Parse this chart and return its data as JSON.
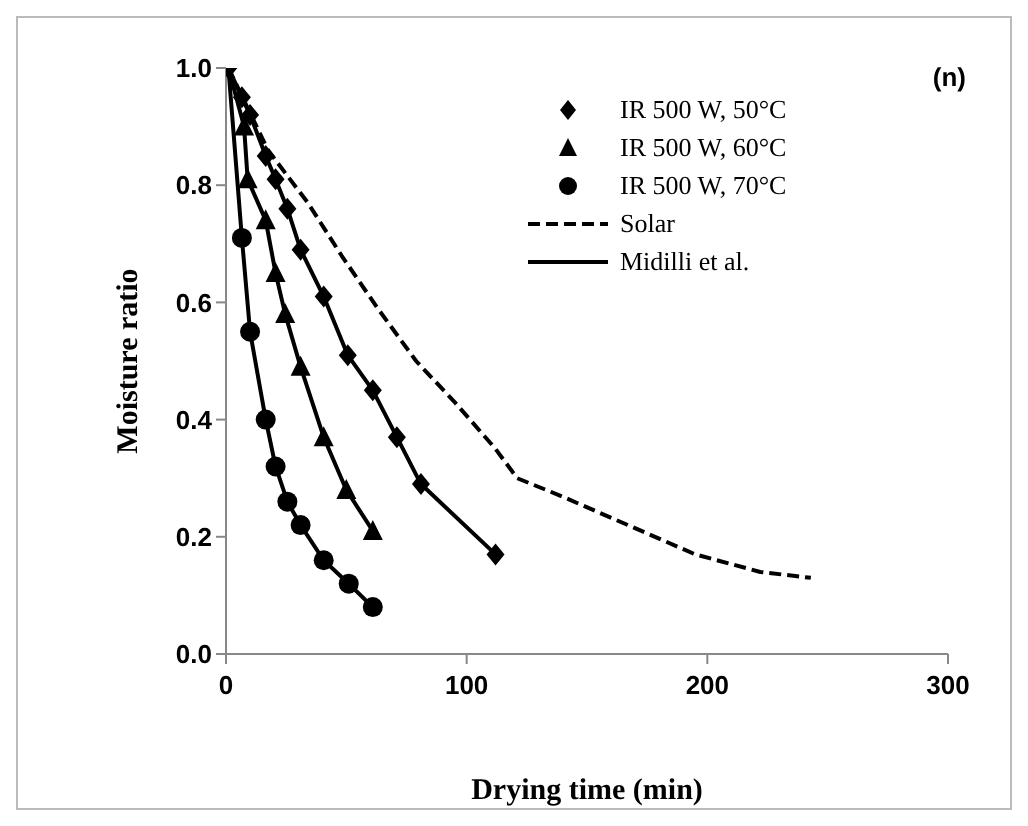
{
  "chart_data": {
    "type": "scatter",
    "xlabel": "Drying time (min)",
    "ylabel": "Moisture ratio",
    "annotations": [
      "(n)"
    ],
    "xlim": [
      0,
      300
    ],
    "xticks": [
      0,
      100,
      200,
      300
    ],
    "ylim": [
      0,
      1
    ],
    "yticks": [
      {
        "value": 0,
        "label": "0.0"
      },
      {
        "value": 0.2,
        "label": "0.2"
      },
      {
        "value": 0.4,
        "label": "0.4"
      },
      {
        "value": 0.6,
        "label": "0.6"
      },
      {
        "value": 0.8,
        "label": "0.8"
      },
      {
        "value": 1,
        "label": "1.0"
      }
    ],
    "grid": false,
    "legend": "top right",
    "series": [
      {
        "name": "IR 500 W, 50°C",
        "type": "scatter",
        "marker": "diamond",
        "color": "#000000",
        "x": [
          1,
          6.6,
          10,
          16.5,
          20.6,
          25.5,
          31,
          40.6,
          50.6,
          61,
          71,
          81,
          112
        ],
        "values": [
          1,
          0.95,
          0.92,
          0.85,
          0.81,
          0.76,
          0.69,
          0.61,
          0.51,
          0.45,
          0.37,
          0.29,
          0.17
        ]
      },
      {
        "name": "IR 500 W, 60°C",
        "type": "scatter",
        "marker": "triangle",
        "color": "#000000",
        "x": [
          7.5,
          9,
          16.5,
          20.6,
          24.6,
          31,
          40.6,
          50,
          61
        ],
        "values": [
          0.9,
          0.81,
          0.74,
          0.65,
          0.58,
          0.49,
          0.37,
          0.28,
          0.21
        ]
      },
      {
        "name": "IR 500 W, 70°C",
        "type": "scatter",
        "marker": "circle",
        "color": "#000000",
        "x": [
          6.6,
          10,
          16.5,
          20.6,
          25.5,
          31,
          40.6,
          51,
          61
        ],
        "values": [
          0.71,
          0.55,
          0.4,
          0.32,
          0.26,
          0.22,
          0.16,
          0.12,
          0.08
        ]
      },
      {
        "name": "Solar",
        "type": "line",
        "line_style": "dashed",
        "color": "#000000",
        "x": [
          1,
          17.4,
          34,
          48,
          63,
          79,
          95,
          112,
          121,
          139,
          167,
          195,
          222,
          243
        ],
        "values": [
          1,
          0.86,
          0.77,
          0.68,
          0.59,
          0.5,
          0.43,
          0.35,
          0.3,
          0.27,
          0.22,
          0.17,
          0.14,
          0.13
        ]
      },
      {
        "name": "Midilli et al.",
        "type": "line",
        "line_style": "solid",
        "color": "#000000",
        "x": [
          1,
          6.6,
          10,
          16.5,
          20.6,
          25.5,
          31,
          40.6,
          50.6,
          61,
          71,
          81,
          112
        ],
        "values": [
          1,
          0.95,
          0.92,
          0.85,
          0.81,
          0.76,
          0.69,
          0.61,
          0.51,
          0.45,
          0.37,
          0.29,
          0.17
        ]
      },
      {
        "type": "line",
        "line_style": "solid",
        "color": "#000000",
        "x": [
          1,
          7.5,
          9,
          16.5,
          20.6,
          24.6,
          31,
          40.6,
          50,
          61
        ],
        "values": [
          1,
          0.9,
          0.81,
          0.74,
          0.65,
          0.58,
          0.49,
          0.37,
          0.28,
          0.21
        ]
      },
      {
        "type": "line",
        "line_style": "solid",
        "color": "#000000",
        "x": [
          1,
          6.6,
          10,
          16.5,
          20.6,
          25.5,
          31,
          40.6,
          51,
          61
        ],
        "values": [
          1,
          0.71,
          0.55,
          0.4,
          0.32,
          0.26,
          0.22,
          0.16,
          0.12,
          0.08
        ]
      }
    ]
  }
}
